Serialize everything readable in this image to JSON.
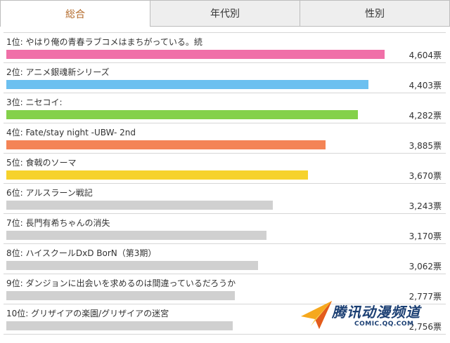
{
  "tabs": [
    {
      "label": "総合",
      "active": true
    },
    {
      "label": "年代別",
      "active": false
    },
    {
      "label": "性別",
      "active": false
    }
  ],
  "rankings": [
    {
      "title": "1位: やはり俺の青春ラブコメはまちがっている。続",
      "votes": "4,604票",
      "value": 4604,
      "color": "#f070a8"
    },
    {
      "title": "2位: アニメ銀魂新シリーズ",
      "votes": "4,403票",
      "value": 4403,
      "color": "#6cc0f0"
    },
    {
      "title": "3位: ニセコイ:",
      "votes": "4,282票",
      "value": 4282,
      "color": "#84d14a"
    },
    {
      "title": "4位: Fate/stay night -UBW- 2nd",
      "votes": "3,885票",
      "value": 3885,
      "color": "#f48456"
    },
    {
      "title": "5位: 食戟のソーマ",
      "votes": "3,670票",
      "value": 3670,
      "color": "#f6d22c"
    },
    {
      "title": "6位: アルスラーン戦記",
      "votes": "3,243票",
      "value": 3243,
      "color": "#d0d0d0"
    },
    {
      "title": "7位: 長門有希ちゃんの消失",
      "votes": "3,170票",
      "value": 3170,
      "color": "#d0d0d0"
    },
    {
      "title": "8位: ハイスクールDxD BorN（第3期）",
      "votes": "3,062票",
      "value": 3062,
      "color": "#d0d0d0"
    },
    {
      "title": "9位: ダンジョンに出会いを求めるのは間違っているだろうか",
      "votes": "2,777票",
      "value": 2777,
      "color": "#d0d0d0"
    },
    {
      "title": "10位: グリザイアの楽園/グリザイアの迷宮",
      "votes": "2,756票",
      "value": 2756,
      "color": "#d0d0d0"
    }
  ],
  "watermark": {
    "name": "腾讯动漫频道",
    "url": "COMIC.QQ.COM",
    "icon": "paper-plane-logo-icon"
  }
}
